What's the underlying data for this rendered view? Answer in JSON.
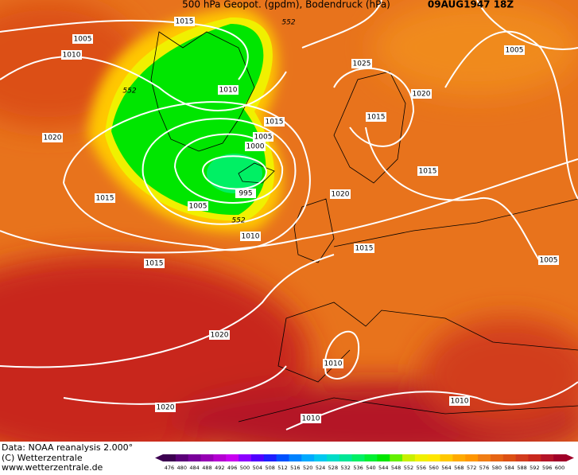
{
  "header": {
    "title": "500 hPa Geopot. (gpdm), Bodendruck (hPa)",
    "date": "09AUG1947 18Z"
  },
  "isobar_labels": [
    1005,
    1010,
    1015,
    552,
    1025,
    1005,
    552,
    1010,
    1020,
    1015,
    1015,
    1020,
    1005,
    1000,
    1015,
    995,
    1020,
    1015,
    1005,
    552,
    1010,
    1015,
    1015,
    1005,
    1020,
    1010,
    1010,
    1020,
    1010
  ],
  "footer": {
    "source": "Data: NOAA reanalysis 2.000°",
    "copyright": "(C) Wetterzentrale",
    "url": "www.wetterzentrale.de"
  },
  "legend": {
    "levels": [
      476,
      480,
      484,
      488,
      492,
      496,
      500,
      504,
      508,
      512,
      516,
      520,
      524,
      528,
      532,
      536,
      540,
      544,
      548,
      552,
      556,
      560,
      564,
      568,
      572,
      576,
      580,
      584,
      588,
      592,
      596,
      600
    ],
    "colors": [
      "#3c0050",
      "#5a0078",
      "#78009a",
      "#9600b4",
      "#b400d2",
      "#c800f0",
      "#8c00ff",
      "#5000ff",
      "#1e1eff",
      "#0050ff",
      "#0082ff",
      "#00aaff",
      "#00c8f0",
      "#00dcc8",
      "#00e696",
      "#00f064",
      "#00f032",
      "#00e600",
      "#64f000",
      "#c8f000",
      "#f0f000",
      "#ffe600",
      "#ffc800",
      "#ffaa00",
      "#ff9600",
      "#f07d14",
      "#e66414",
      "#dc5014",
      "#d23c1e",
      "#c8281e",
      "#b41428",
      "#a00028"
    ]
  }
}
